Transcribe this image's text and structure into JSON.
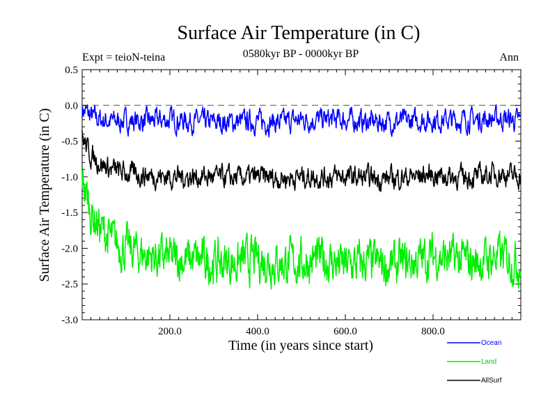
{
  "chart_data": {
    "type": "line",
    "title": "Surface Air Temperature (in C)",
    "subtitle": "0580kyr BP - 0000kyr BP",
    "experiment_label": "Expt = teioN-teina",
    "season_label": "Ann",
    "xlabel": "Time (in years since start)",
    "ylabel": "Surface Air Temperature (in C)",
    "xlim": [
      0,
      1000
    ],
    "ylim": [
      -3.0,
      0.5
    ],
    "x_ticks": [
      200,
      400,
      600,
      800
    ],
    "x_tick_labels": [
      "200.0",
      "400.0",
      "600.0",
      "800.0"
    ],
    "y_ticks": [
      0.5,
      0.0,
      -0.5,
      -1.0,
      -1.5,
      -2.0,
      -2.5,
      -3.0
    ],
    "y_tick_labels": [
      "0.5",
      "0.0",
      "-0.5",
      "-1.0",
      "-1.5",
      "-2.0",
      "-2.5",
      "-3.0"
    ],
    "reference_line": 0.0,
    "grid": false,
    "legend_position": "bottom-right, below plot",
    "series": [
      {
        "name": "Ocean",
        "color": "#0000ff",
        "x": [
          0,
          20,
          40,
          60,
          80,
          100,
          150,
          200,
          250,
          300,
          350,
          400,
          450,
          500,
          550,
          600,
          650,
          700,
          750,
          800,
          850,
          900,
          950,
          1000
        ],
        "values": [
          -0.05,
          -0.15,
          -0.2,
          -0.22,
          -0.22,
          -0.22,
          -0.22,
          -0.2,
          -0.22,
          -0.24,
          -0.23,
          -0.22,
          -0.24,
          -0.2,
          -0.2,
          -0.2,
          -0.23,
          -0.23,
          -0.22,
          -0.2,
          -0.21,
          -0.2,
          -0.18,
          -0.22
        ]
      },
      {
        "name": "Land",
        "color": "#00ee00",
        "x": [
          0,
          20,
          40,
          60,
          80,
          100,
          150,
          200,
          250,
          300,
          350,
          400,
          450,
          500,
          550,
          600,
          650,
          700,
          750,
          800,
          850,
          900,
          950,
          1000
        ],
        "values": [
          -1.0,
          -1.5,
          -1.7,
          -1.85,
          -1.95,
          -2.0,
          -2.1,
          -2.15,
          -2.15,
          -2.2,
          -2.2,
          -2.15,
          -2.2,
          -2.2,
          -2.15,
          -2.25,
          -2.2,
          -2.25,
          -2.2,
          -2.1,
          -2.15,
          -2.2,
          -2.1,
          -2.2
        ]
      },
      {
        "name": "AllSurf",
        "color": "#000000",
        "x": [
          0,
          20,
          40,
          60,
          80,
          100,
          150,
          200,
          250,
          300,
          350,
          400,
          450,
          500,
          550,
          600,
          650,
          700,
          750,
          800,
          850,
          900,
          950,
          1000
        ],
        "values": [
          -0.45,
          -0.7,
          -0.8,
          -0.88,
          -0.92,
          -0.95,
          -0.98,
          -1.0,
          -1.0,
          -1.0,
          -1.02,
          -1.0,
          -1.02,
          -1.0,
          -1.0,
          -1.0,
          -1.02,
          -1.02,
          -1.0,
          -0.97,
          -1.0,
          -1.0,
          -0.95,
          -1.0
        ]
      }
    ],
    "noise_amplitude": [
      0.12,
      0.24,
      0.12
    ]
  }
}
